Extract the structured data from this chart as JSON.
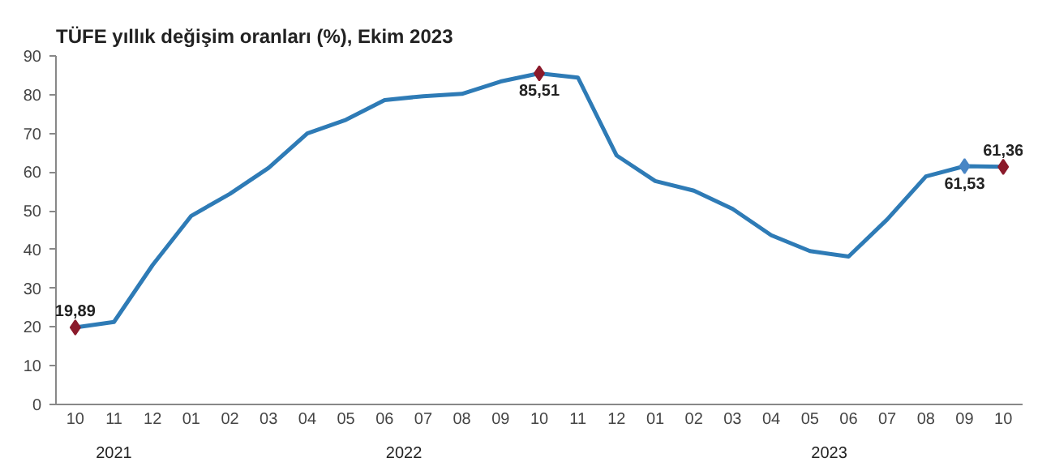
{
  "chart_data": {
    "type": "line",
    "title": "TÜFE yıllık değişim oranları (%), Ekim 2023",
    "categories": [
      "10",
      "11",
      "12",
      "01",
      "02",
      "03",
      "04",
      "05",
      "06",
      "07",
      "08",
      "09",
      "10",
      "11",
      "12",
      "01",
      "02",
      "03",
      "04",
      "05",
      "06",
      "07",
      "08",
      "09",
      "10"
    ],
    "series": [
      {
        "color": "#2e7bb6",
        "values": [
          19.89,
          21.3,
          36,
          48.7,
          54.4,
          61.1,
          70,
          73.5,
          78.6,
          79.6,
          80.2,
          83.4,
          85.51,
          84.4,
          64.3,
          57.7,
          55.2,
          50.5,
          43.7,
          39.6,
          38.2,
          47.8,
          58.9,
          61.53,
          61.36
        ]
      },
      {
        "type": "scatter",
        "marker": "diamond",
        "colors": [
          "#8b1a2b",
          null,
          null,
          null,
          null,
          null,
          null,
          null,
          null,
          null,
          null,
          null,
          "#8b1a2b",
          null,
          null,
          null,
          null,
          null,
          null,
          null,
          null,
          null,
          null,
          "#4a86c5",
          "#8b1a2b"
        ],
        "values": [
          19.89,
          null,
          null,
          null,
          null,
          null,
          null,
          null,
          null,
          null,
          null,
          null,
          85.51,
          null,
          null,
          null,
          null,
          null,
          null,
          null,
          null,
          null,
          null,
          61.53,
          61.36
        ],
        "value_labels": [
          "19,89",
          null,
          null,
          null,
          null,
          null,
          null,
          null,
          null,
          null,
          null,
          null,
          "85,51",
          null,
          null,
          null,
          null,
          null,
          null,
          null,
          null,
          null,
          null,
          "61,53",
          "61,36"
        ]
      }
    ],
    "annotations": [
      "2021",
      "2022",
      "2023"
    ],
    "ylim": [
      0,
      90
    ],
    "yticks": [
      0,
      10,
      20,
      30,
      40,
      50,
      60,
      70,
      80,
      90
    ],
    "grid": false,
    "line_style": "solid"
  }
}
